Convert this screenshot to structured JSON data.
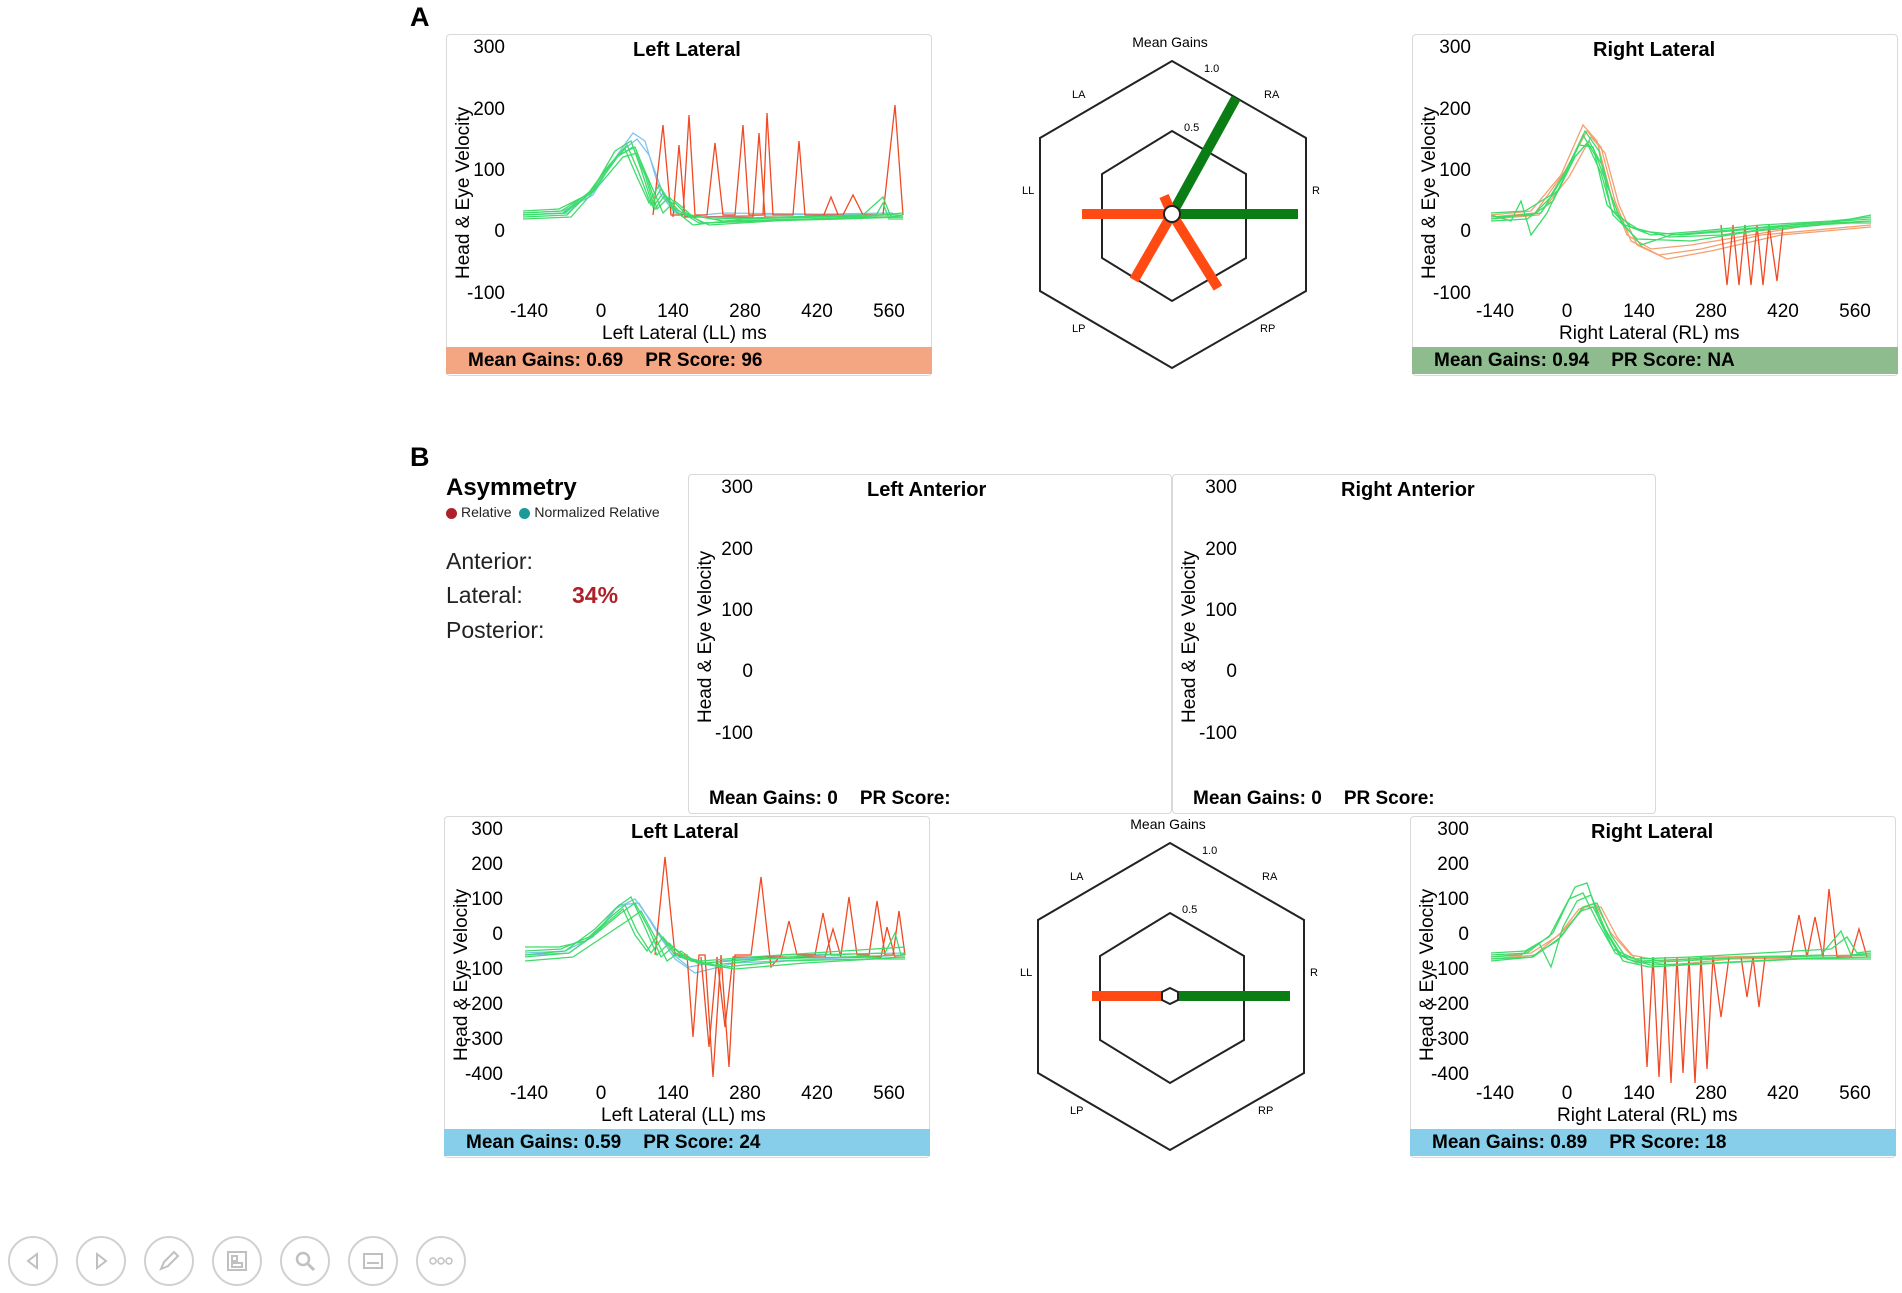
{
  "sections": {
    "a": "A",
    "b": "B"
  },
  "panelA": {
    "left": {
      "title": "Left Lateral",
      "yticks": [
        "300",
        "200",
        "100",
        "0",
        "-100"
      ],
      "xticks": [
        "-140",
        "0",
        "140",
        "280",
        "420",
        "560"
      ],
      "ylabel": "Head & Eye Velocity",
      "xlabel": "Left Lateral (LL) ms",
      "mean_gains_label": "Mean Gains: 0.69",
      "pr_label": "PR Score: 96",
      "footer_color": "#f4a582"
    },
    "radar": {
      "title": "Mean Gains",
      "outer": "1.0",
      "inner": "0.5",
      "axes": [
        "LA",
        "RA",
        "RL",
        "RP",
        "LP",
        "LL"
      ]
    },
    "right": {
      "title": "Right Lateral",
      "yticks": [
        "300",
        "200",
        "100",
        "0",
        "-100"
      ],
      "xticks": [
        "-140",
        "0",
        "140",
        "280",
        "420",
        "560"
      ],
      "ylabel": "Head & Eye Velocity",
      "xlabel": "Right Lateral (RL) ms",
      "mean_gains_label": "Mean Gains: 0.94",
      "pr_label": "PR Score: NA",
      "footer_color": "#8fbc8f"
    }
  },
  "asymmetry": {
    "title": "Asymmetry",
    "legend_relative": "Relative",
    "legend_normalized": "Normalized Relative",
    "relative_color": "#b0202a",
    "normalized_color": "#1a9a9a",
    "anterior_label": "Anterior:",
    "lateral_label": "Lateral:",
    "lateral_value": "34%",
    "posterior_label": "Posterior:"
  },
  "panelB": {
    "left_anterior": {
      "title": "Left Anterior",
      "yticks": [
        "300",
        "200",
        "100",
        "0",
        "-100"
      ],
      "ylabel": "Head & Eye Velocity",
      "mean_gains_label": "Mean Gains: 0",
      "pr_label": "PR Score:"
    },
    "right_anterior": {
      "title": "Right Anterior",
      "yticks": [
        "300",
        "200",
        "100",
        "0",
        "-100"
      ],
      "ylabel": "Head & Eye Velocity",
      "mean_gains_label": "Mean Gains: 0",
      "pr_label": "PR Score:"
    },
    "left": {
      "title": "Left Lateral",
      "yticks": [
        "300",
        "200",
        "100",
        "0",
        "-100",
        "-200",
        "-300",
        "-400"
      ],
      "xticks": [
        "-140",
        "0",
        "140",
        "280",
        "420",
        "560"
      ],
      "ylabel": "Head & Eye Velocity",
      "xlabel": "Left Lateral (LL) ms",
      "mean_gains_label": "Mean Gains: 0.59",
      "pr_label": "PR Score: 24",
      "footer_color": "#87ceeb"
    },
    "radar": {
      "title": "Mean Gains",
      "outer": "1.0",
      "inner": "0.5",
      "axes": [
        "LA",
        "RA",
        "RL",
        "RP",
        "LP",
        "LL"
      ]
    },
    "right": {
      "title": "Right Lateral",
      "yticks": [
        "300",
        "200",
        "100",
        "0",
        "-100",
        "-200",
        "-300",
        "-400"
      ],
      "xticks": [
        "-140",
        "0",
        "140",
        "280",
        "420",
        "560"
      ],
      "ylabel": "Head & Eye Velocity",
      "xlabel": "Right Lateral (RL) ms",
      "mean_gains_label": "Mean Gains: 0.89",
      "pr_label": "PR Score: 18",
      "footer_color": "#87ceeb"
    }
  },
  "toolbar": {
    "buttons": [
      "previous-icon",
      "next-icon",
      "pen-icon",
      "slides-icon",
      "zoom-icon",
      "subtitles-icon",
      "more-icon"
    ]
  },
  "colors": {
    "green_trace": "#3ddc6a",
    "blue_trace": "#7fc4ee",
    "red_trace": "#f04a24",
    "radar_green": "#0a7d14",
    "radar_orange": "#ff4a14"
  }
}
